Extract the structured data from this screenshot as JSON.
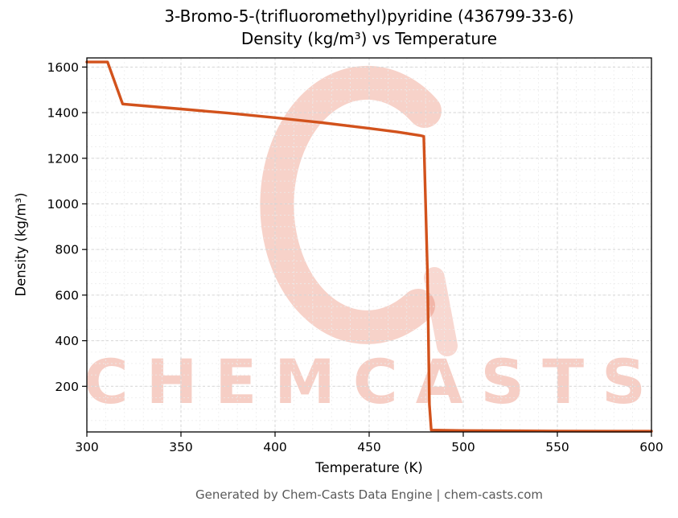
{
  "header": {
    "title_line1": "3-Bromo-5-(trifluoromethyl)pyridine (436799-33-6)",
    "title_line2": "Density (kg/m³) vs Temperature"
  },
  "footer": {
    "text": "Generated by Chem-Casts Data Engine | chem-casts.com"
  },
  "watermark": {
    "text": "CHEMCASTS",
    "logo": "chemcasts-c-swirl",
    "color": "#e25c3e"
  },
  "chart_data": {
    "type": "line",
    "title": "Density (kg/m³) vs Temperature",
    "xlabel": "Temperature (K)",
    "ylabel": "Density (kg/m³)",
    "xlim": [
      300,
      600
    ],
    "ylim": [
      0,
      1640
    ],
    "xticks": [
      300,
      350,
      400,
      450,
      500,
      550,
      600
    ],
    "yticks": [
      200,
      400,
      600,
      800,
      1000,
      1200,
      1400,
      1600
    ],
    "grid": true,
    "legend_position": "none",
    "line_color": "#d2521c",
    "series": [
      {
        "name": "Density (kg/m³)",
        "x": [
          300,
          311,
          319,
          330,
          350,
          375,
          400,
          425,
          450,
          465,
          477,
          479,
          481,
          482,
          483,
          500,
          550,
          600
        ],
        "y": [
          1622,
          1622,
          1438,
          1430,
          1416,
          1398,
          1378,
          1356,
          1331,
          1315,
          1300,
          1296,
          700,
          120,
          8,
          6,
          4,
          3
        ]
      }
    ]
  }
}
